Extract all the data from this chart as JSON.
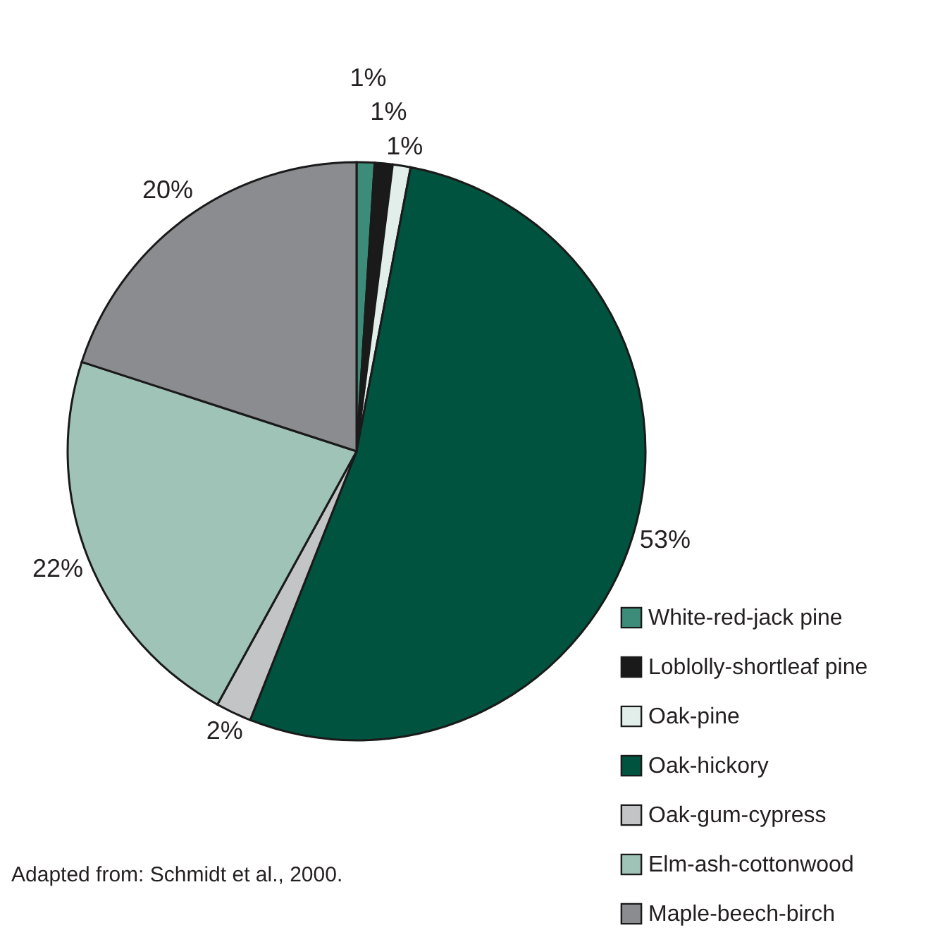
{
  "chart_data": {
    "type": "pie",
    "categories": [
      "White-red-jack pine",
      "Loblolly-shortleaf pine",
      "Oak-pine",
      "Oak-hickory",
      "Oak-gum-cypress",
      "Elm-ash-cottonwood",
      "Maple-beech-birch"
    ],
    "values": [
      1,
      1,
      1,
      53,
      2,
      22,
      20
    ],
    "colors": [
      "#3d8c7a",
      "#1a1a1a",
      "#e2eeea",
      "#00533f",
      "#c2c4c6",
      "#9fc3b7",
      "#8a8c8f"
    ],
    "value_labels": [
      "1%",
      "1%",
      "1%",
      "53%",
      "2%",
      "22%",
      "20%"
    ],
    "legend": "bottom right",
    "annotations": [
      "Adapted from: Schmidt et al., 2000."
    ]
  }
}
